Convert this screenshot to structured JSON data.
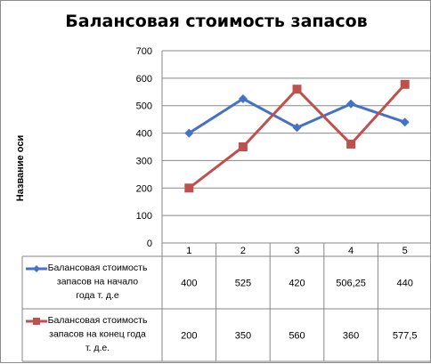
{
  "chart_data": {
    "type": "line",
    "title": "Балансовая стоимость запасов",
    "ylabel": "Название оси",
    "xlabel": "",
    "categories": [
      "1",
      "2",
      "3",
      "4",
      "5"
    ],
    "ylim": [
      0,
      700
    ],
    "yticks": [
      0,
      100,
      200,
      300,
      400,
      500,
      600,
      700
    ],
    "grid": true,
    "legend_placement": "data-table",
    "series": [
      {
        "name_lines": [
          "Балансовая стоимость",
          "запасов на начало",
          "года т. д.е"
        ],
        "values": [
          400,
          525,
          420,
          506.25,
          440
        ],
        "value_labels": [
          "400",
          "525",
          "420",
          "506,25",
          "440"
        ],
        "color": "#4472c4",
        "marker": "diamond"
      },
      {
        "name_lines": [
          "Балансовая стоимость",
          "запасов на конец года",
          "т. д.е."
        ],
        "values": [
          200,
          350,
          560,
          360,
          577.5
        ],
        "value_labels": [
          "200",
          "350",
          "560",
          "360",
          "577,5"
        ],
        "color": "#c0504d",
        "marker": "square"
      }
    ]
  }
}
